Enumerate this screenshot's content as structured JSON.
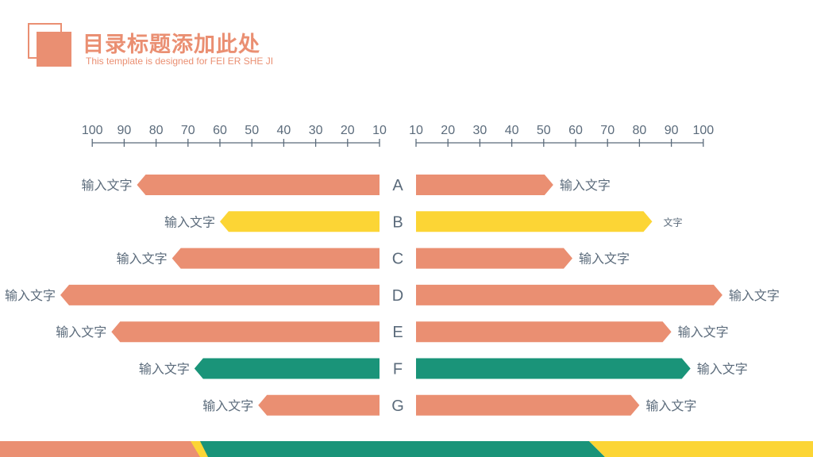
{
  "header": {
    "title": "目录标题添加此处",
    "subtitle": "This template is designed  for FEI ER  SHE JI"
  },
  "colors": {
    "accent": "#EA8F72",
    "yellow": "#FCD535",
    "teal": "#1A9479",
    "axis": "#5B6B7B"
  },
  "chart_data": {
    "type": "bar",
    "layout": "butterfly",
    "categories": [
      "A",
      "B",
      "C",
      "D",
      "E",
      "F",
      "G"
    ],
    "left_axis_ticks": [
      "100",
      "90",
      "80",
      "70",
      "60",
      "50",
      "40",
      "30",
      "20",
      "10"
    ],
    "right_axis_ticks": [
      "10",
      "20",
      "30",
      "40",
      "50",
      "60",
      "70",
      "80",
      "90",
      "100"
    ],
    "xlim": [
      0,
      100
    ],
    "series": [
      {
        "side": "left",
        "values": [
          76,
          50,
          65,
          100,
          84,
          58,
          38
        ],
        "labels": [
          "输入文字",
          "输入文字",
          "输入文字",
          "输入文字",
          "输入文字",
          "输入文字",
          "输入文字"
        ]
      },
      {
        "side": "right",
        "values": [
          43,
          74,
          49,
          96,
          80,
          86,
          70
        ],
        "labels": [
          "输入文字",
          "文字",
          "输入文字",
          "输入文字",
          "输入文字",
          "输入文字",
          "输入文字"
        ]
      }
    ],
    "bar_colors": [
      "#EA8F72",
      "#FCD535",
      "#EA8F72",
      "#EA8F72",
      "#EA8F72",
      "#1A9479",
      "#EA8F72"
    ]
  }
}
